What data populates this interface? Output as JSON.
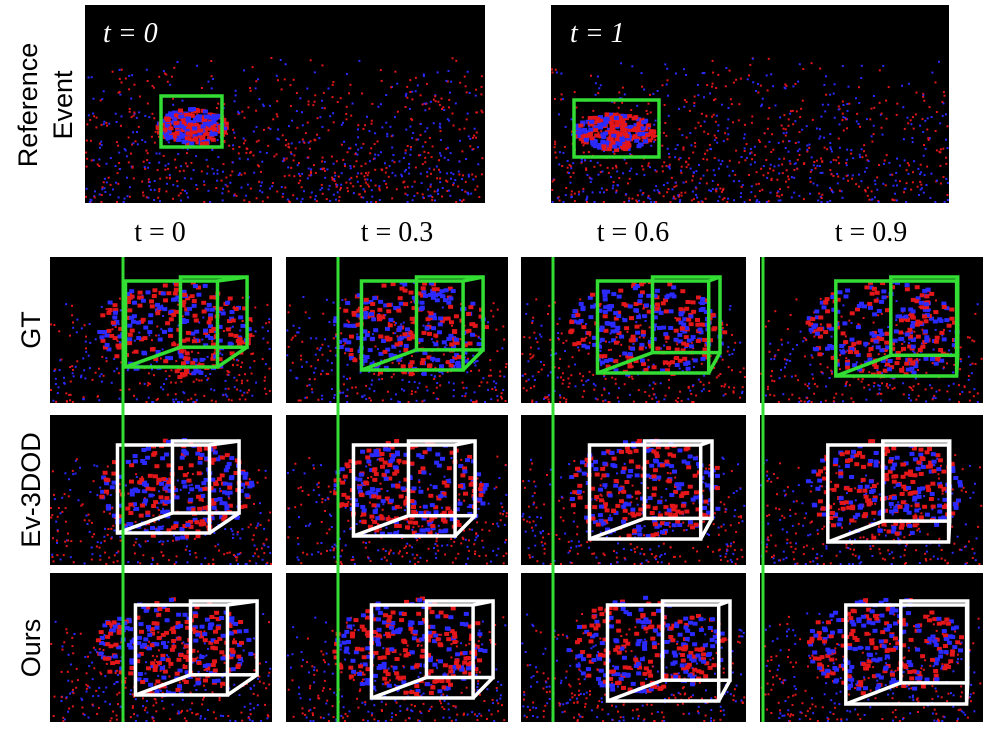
{
  "reference": {
    "label_lines": [
      "Reference",
      "Event"
    ],
    "frames": [
      "t = 0",
      "t = 1"
    ]
  },
  "columns": [
    "t = 0",
    "t = 0.3",
    "t = 0.6",
    "t = 0.9"
  ],
  "rows": [
    "GT",
    "Ev-3DOD",
    "Ours"
  ]
}
